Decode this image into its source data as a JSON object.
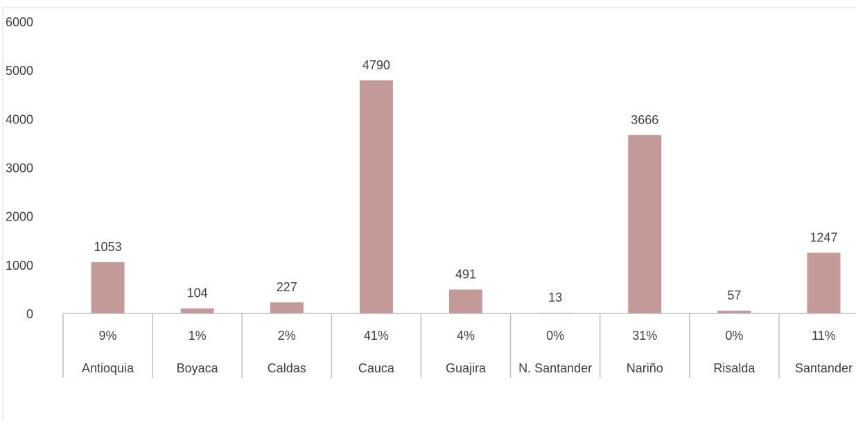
{
  "chart_data": {
    "type": "bar",
    "categories": [
      "Antioquia",
      "Boyaca",
      "Caldas",
      "Cauca",
      "Guajira",
      "N. Santander",
      "Nariño",
      "Risalda",
      "Santander"
    ],
    "percent_labels": [
      "9%",
      "1%",
      "2%",
      "41%",
      "4%",
      "0%",
      "31%",
      "0%",
      "11%"
    ],
    "values": [
      1053,
      104,
      227,
      4790,
      491,
      13,
      3666,
      57,
      1247
    ],
    "y_ticks": [
      0,
      1000,
      2000,
      3000,
      4000,
      5000,
      6000
    ],
    "ylim": [
      0,
      6000
    ],
    "bar_color": "#c49a98",
    "grid": false,
    "title": "",
    "xlabel": "",
    "ylabel": ""
  }
}
